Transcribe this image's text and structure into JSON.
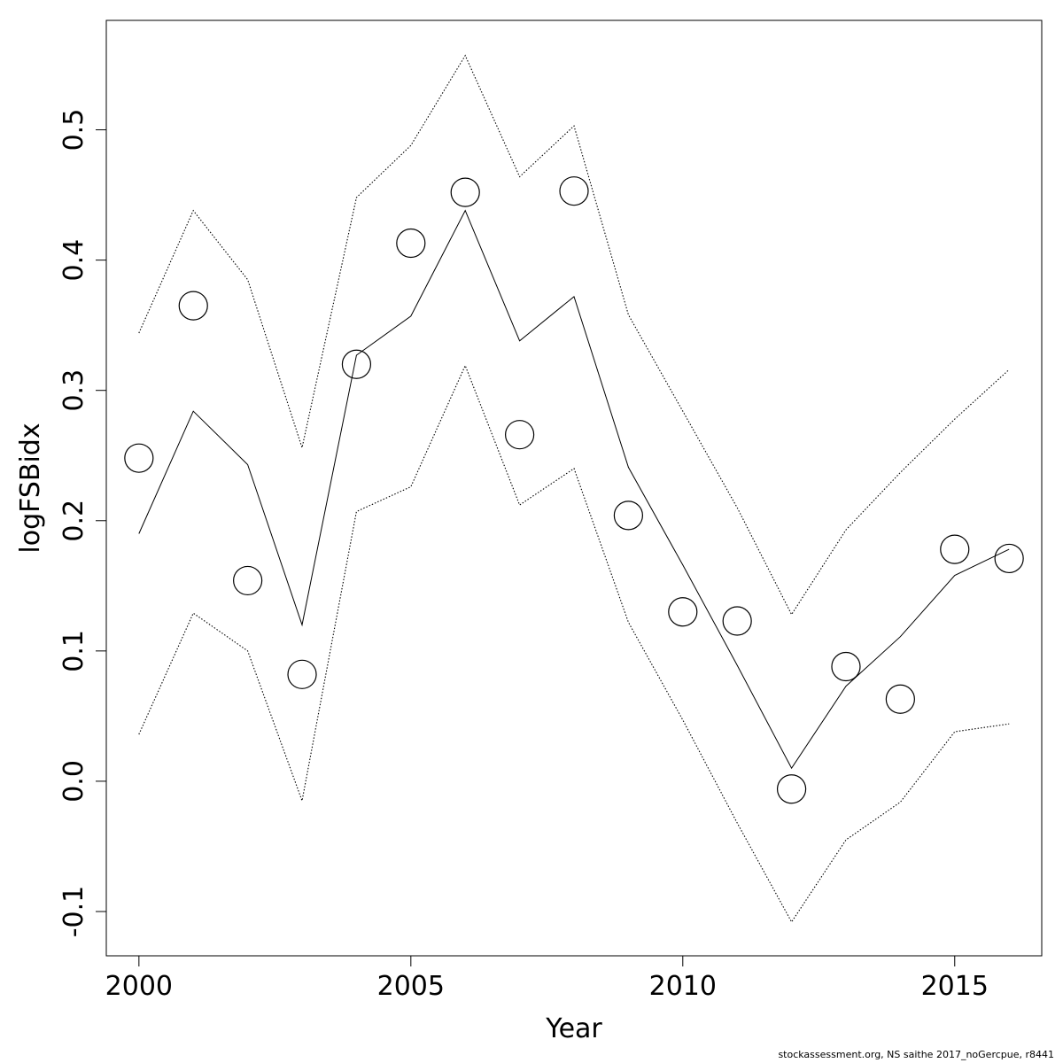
{
  "chart_data": {
    "type": "line",
    "title": "",
    "xlabel": "Year",
    "ylabel": "logFSBidx",
    "xlim": [
      1999.4,
      2016.6
    ],
    "ylim": [
      -0.134,
      0.584
    ],
    "x_ticks": [
      2000,
      2005,
      2010,
      2015
    ],
    "y_ticks": [
      -0.1,
      0.0,
      0.1,
      0.2,
      0.3,
      0.4,
      0.5
    ],
    "y_tick_labels": [
      "-0.1",
      "0.0",
      "0.1",
      "0.2",
      "0.3",
      "0.4",
      "0.5"
    ],
    "grid": false,
    "legend": "none",
    "x": [
      2000,
      2001,
      2002,
      2003,
      2004,
      2005,
      2006,
      2007,
      2008,
      2009,
      2010,
      2011,
      2012,
      2013,
      2014,
      2015,
      2016
    ],
    "series": [
      {
        "style": "points",
        "marker": "open-circle",
        "values": [
          0.248,
          0.365,
          0.154,
          0.082,
          0.32,
          0.413,
          0.452,
          0.266,
          0.453,
          0.204,
          0.13,
          0.123,
          -0.006,
          0.088,
          0.063,
          0.178,
          0.171
        ]
      },
      {
        "style": "solid-line",
        "values": [
          0.19,
          0.284,
          0.243,
          0.12,
          0.327,
          0.357,
          0.438,
          0.338,
          0.372,
          0.241,
          0.166,
          0.089,
          0.01,
          0.073,
          0.111,
          0.158,
          0.178
        ]
      },
      {
        "style": "dotted-line",
        "values": [
          0.344,
          0.438,
          0.385,
          0.256,
          0.448,
          0.488,
          0.557,
          0.464,
          0.503,
          0.358,
          0.284,
          0.21,
          0.128,
          0.193,
          0.237,
          0.278,
          0.316
        ]
      },
      {
        "style": "dotted-line",
        "values": [
          0.036,
          0.129,
          0.1,
          -0.015,
          0.207,
          0.226,
          0.319,
          0.212,
          0.24,
          0.122,
          0.047,
          -0.032,
          -0.108,
          -0.045,
          -0.016,
          0.038,
          0.044
        ]
      }
    ]
  },
  "footer": "stockassessment.org, NS saithe 2017_noGercpue, r8441",
  "colors": {
    "ink": "#000000",
    "background": "#ffffff"
  }
}
